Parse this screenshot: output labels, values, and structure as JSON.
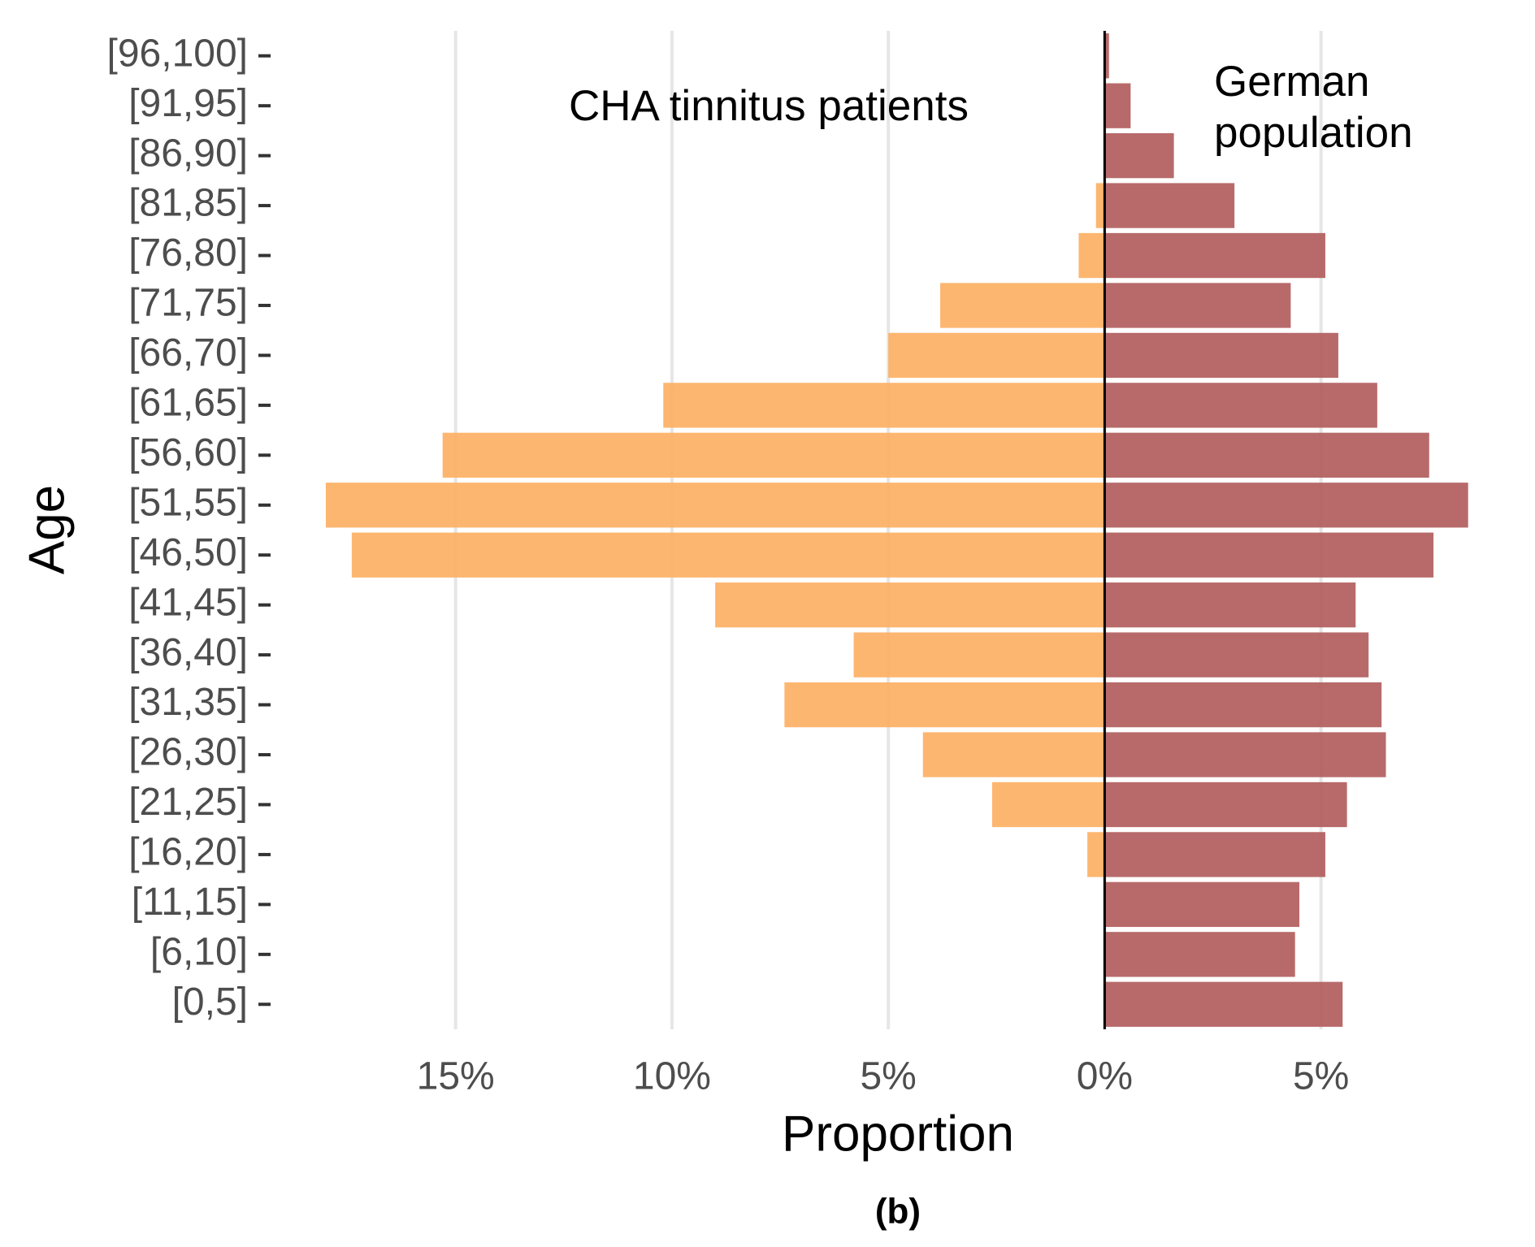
{
  "chart_data": {
    "type": "pyramid",
    "x_label": "Proportion",
    "y_label": "Age",
    "caption": "(b)",
    "annotations": [
      {
        "lines": [
          "CHA tinnitus patients"
        ]
      },
      {
        "lines": [
          "German",
          "population"
        ]
      }
    ],
    "categories": [
      "[96,100]",
      "[91,95]",
      "[86,90]",
      "[81,85]",
      "[76,80]",
      "[71,75]",
      "[66,70]",
      "[61,65]",
      "[56,60]",
      "[51,55]",
      "[46,50]",
      "[41,45]",
      "[36,40]",
      "[31,35]",
      "[26,30]",
      "[21,25]",
      "[16,20]",
      "[11,15]",
      "[6,10]",
      "[0,5]"
    ],
    "series": [
      {
        "color": "#fdae61",
        "values": [
          0,
          0,
          0,
          -0.2,
          -0.6,
          -3.8,
          -5.0,
          -10.2,
          -15.3,
          -18.0,
          -17.4,
          -9.0,
          -5.8,
          -7.4,
          -4.2,
          -2.6,
          -0.4,
          0,
          0,
          0
        ]
      },
      {
        "color": "#b05a5a",
        "values": [
          0.1,
          0.6,
          1.6,
          3.0,
          5.1,
          4.3,
          5.4,
          6.3,
          7.5,
          8.4,
          7.6,
          5.8,
          6.1,
          6.4,
          6.5,
          5.6,
          5.1,
          4.5,
          4.4,
          5.5
        ]
      }
    ],
    "xlim": [
      -18.9,
      8.8
    ],
    "xticks": [
      {
        "value": -15,
        "label": "15%"
      },
      {
        "value": -10,
        "label": "10%"
      },
      {
        "value": -5,
        "label": "5%"
      },
      {
        "value": 0,
        "label": "0%"
      },
      {
        "value": 5,
        "label": "5%"
      }
    ],
    "grid": true
  }
}
